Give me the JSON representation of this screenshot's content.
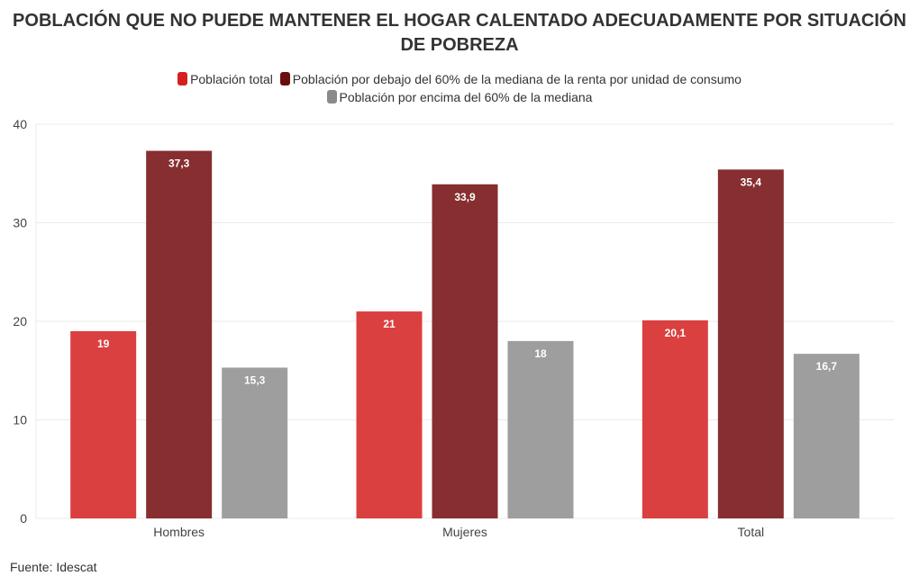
{
  "title": "POBLACIÓN QUE NO PUEDE MANTENER EL HOGAR CALENTADO ADECUADAMENTE POR SITUACIÓN DE POBREZA",
  "source": "Fuente: Idescat",
  "chart_data": {
    "type": "bar",
    "title": "POBLACIÓN QUE NO PUEDE MANTENER EL HOGAR CALENTADO ADECUADAMENTE POR SITUACIÓN DE POBREZA",
    "categories": [
      "Hombres",
      "Mujeres",
      "Total"
    ],
    "series": [
      {
        "name": "Población total",
        "color": "#d62020",
        "bar_color": "#db4040",
        "values": [
          19,
          21,
          20.1
        ],
        "labels": [
          "19",
          "21",
          "20,1"
        ]
      },
      {
        "name": "Población por debajo del 60% de la mediana de la renta por unidad de consumo",
        "color": "#6b0d0d",
        "bar_color": "#862e30",
        "values": [
          37.3,
          33.9,
          35.4
        ],
        "labels": [
          "37,3",
          "33,9",
          "35,4"
        ]
      },
      {
        "name": "Población por encima del 60% de la mediana",
        "color": "#8a8a8a",
        "bar_color": "#9e9e9e",
        "values": [
          15.3,
          18,
          16.7
        ],
        "labels": [
          "15,3",
          "18",
          "16,7"
        ]
      }
    ],
    "ylim": [
      0,
      40
    ],
    "yticks": [
      "0",
      "10",
      "20",
      "30",
      "40"
    ],
    "grid": true,
    "legend": "top-center",
    "xlabel": "",
    "ylabel": ""
  }
}
